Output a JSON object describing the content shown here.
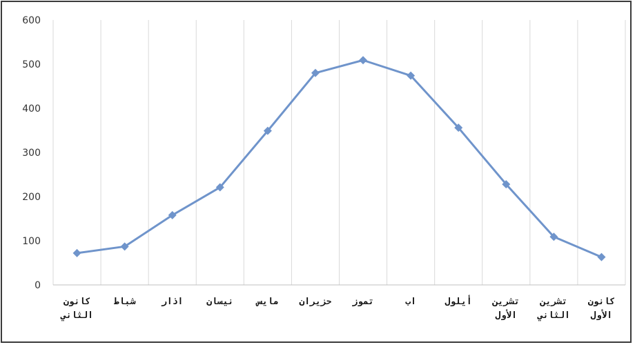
{
  "chart_data": {
    "type": "line",
    "title": "",
    "xlabel": "",
    "ylabel": "",
    "ylim": [
      0,
      600
    ],
    "yticks": [
      0,
      100,
      200,
      300,
      400,
      500,
      600
    ],
    "grid": "vertical",
    "categories": [
      [
        "كانون",
        "الثاني"
      ],
      [
        "شباط"
      ],
      [
        "اذار"
      ],
      [
        "نيسان"
      ],
      [
        "مايس"
      ],
      [
        "حزيران"
      ],
      [
        "تموز"
      ],
      [
        "اب"
      ],
      [
        "أيلول"
      ],
      [
        "تشرين",
        "الأول"
      ],
      [
        "تشرين",
        "الثاني"
      ],
      [
        "كانون",
        "الأول"
      ]
    ],
    "series": [
      {
        "values": [
          72,
          87,
          158,
          221,
          349,
          480,
          509,
          474,
          356,
          228,
          109,
          63
        ],
        "color": "#6f94cb",
        "marker": "diamond"
      }
    ]
  }
}
